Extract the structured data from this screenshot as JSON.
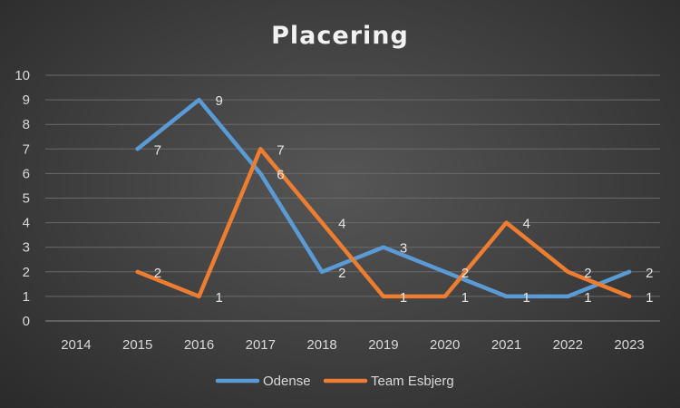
{
  "chart_data": {
    "type": "line",
    "title": "Placering",
    "xlabel": "",
    "ylabel": "",
    "categories": [
      "2014",
      "2015",
      "2016",
      "2017",
      "2018",
      "2019",
      "2020",
      "2021",
      "2022",
      "2023"
    ],
    "ylim": [
      0,
      10
    ],
    "yticks": [
      "0",
      "1",
      "2",
      "3",
      "4",
      "5",
      "6",
      "7",
      "8",
      "9",
      "10"
    ],
    "grid": true,
    "legend_position": "bottom",
    "series": [
      {
        "name": "Odense",
        "color": "#5b9bd5",
        "values": [
          null,
          7,
          9,
          6,
          2,
          3,
          2,
          1,
          1,
          2
        ]
      },
      {
        "name": "Team Esbjerg",
        "color": "#ed7d31",
        "values": [
          null,
          2,
          1,
          7,
          4,
          1,
          1,
          4,
          2,
          1
        ]
      }
    ]
  }
}
